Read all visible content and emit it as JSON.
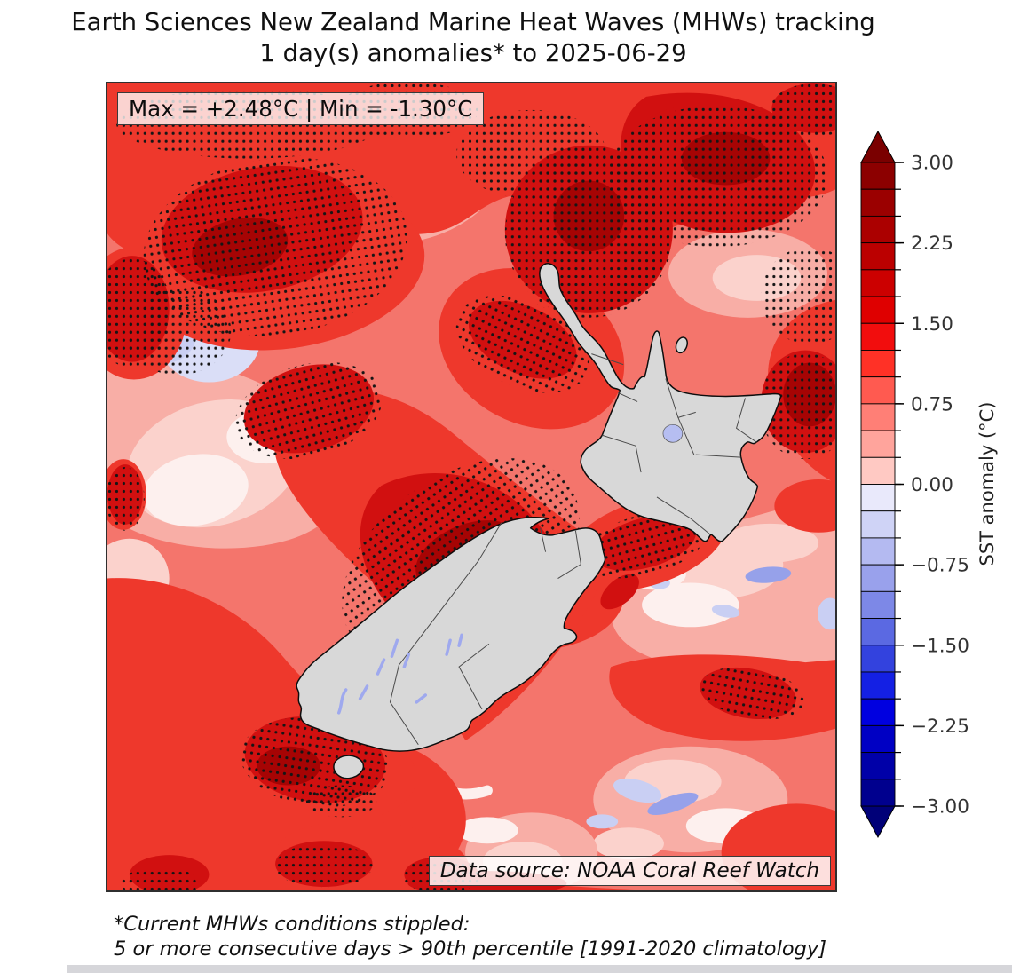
{
  "title": {
    "line1": "Earth Sciences New Zealand Marine Heat Waves (MHWs) tracking",
    "line2": "1 day(s) anomalies* to 2025-06-29"
  },
  "map": {
    "max_min_label": "Max = +2.48°C | Min = -1.30°C",
    "max_c": 2.48,
    "min_c": -1.3,
    "data_source_label": "Data source: NOAA Coral Reef Watch"
  },
  "colorbar": {
    "label": "SST anomaly (°C)",
    "vmin": -3.0,
    "vmax": 3.0,
    "minor_tick_step": 0.25,
    "major_ticks": [
      {
        "value": 3.0,
        "label": "3.00"
      },
      {
        "value": 2.25,
        "label": "2.25"
      },
      {
        "value": 1.5,
        "label": "1.50"
      },
      {
        "value": 0.75,
        "label": "0.75"
      },
      {
        "value": 0.0,
        "label": "0.00"
      },
      {
        "value": -0.75,
        "label": "−0.75"
      },
      {
        "value": -1.5,
        "label": "−1.50"
      },
      {
        "value": -2.25,
        "label": "−2.25"
      },
      {
        "value": -3.0,
        "label": "−3.00"
      }
    ],
    "segment_colors_top_to_bottom": [
      "#8c0000",
      "#9b0000",
      "#ab0000",
      "#bb0000",
      "#cc0000",
      "#df0000",
      "#f20d0d",
      "#ff3126",
      "#ff5a50",
      "#ff7f76",
      "#ffa49c",
      "#ffc9c3",
      "#e9e9fb",
      "#cfd3f6",
      "#b4baf1",
      "#99a1ec",
      "#7d88e7",
      "#5b69e2",
      "#3342de",
      "#1420e4",
      "#0000e0",
      "#0000c4",
      "#0000a8",
      "#00008e"
    ],
    "extend_top_color": "#7a0000",
    "extend_bottom_color": "#000078"
  },
  "footnote": {
    "line1": "*Current MHWs conditions stippled:",
    "line2": "5 or more consecutive days > 90th percentile [1991-2020 climatology]"
  },
  "palette": {
    "sea_base": "#f4756c",
    "sea_bright_red": "#ee382c",
    "sea_dark_red": "#d11010",
    "sea_maroon": "#a60404",
    "sea_pink": "#f8aea6",
    "sea_pale_pink": "#fbd2cc",
    "sea_near_white": "#fdf0ee",
    "sea_lavender": "#c9cff3",
    "sea_lavender_deep": "#96a1ea",
    "land": "#d8d8d8",
    "stipple_dot": "#151515"
  },
  "chart_data": {
    "type": "heatmap",
    "title": "Earth Sciences New Zealand Marine Heat Waves (MHWs) tracking",
    "subtitle": "1 day(s) anomalies* to 2025-06-29",
    "variable": "SST anomaly (°C)",
    "region": "New Zealand and surrounding ocean",
    "date": "2025-06-29",
    "window_days": 1,
    "stats": {
      "max_c": 2.48,
      "min_c": -1.3
    },
    "colorbar": {
      "label": "SST anomaly (°C)",
      "min": -3.0,
      "max": 3.0,
      "segment_step_c": 0.25,
      "major_tick_step_c": 0.75,
      "tick_values": [
        3.0,
        2.25,
        1.5,
        0.75,
        0.0,
        -0.75,
        -1.5,
        -2.25,
        -3.0
      ],
      "extend": "both",
      "position": "right"
    },
    "stippling": "Current MHW conditions: 5 or more consecutive days > 90th percentile (1991-2020 climatology)",
    "source": "NOAA Coral Reef Watch",
    "field_summary": "Warm SST anomalies (~+0.5 to +2.5 °C) cover most of the ocean around New Zealand, with large stippled MHW patches in the Tasman Sea northwest of both islands and along the north and west of the North Island; scattered weak cool anomalies (down to -1.30 °C, pale lavender/blue) appear northwest of the domain, north of Cape Reinga, east of Cook Strait and southeast of the South Island."
  }
}
